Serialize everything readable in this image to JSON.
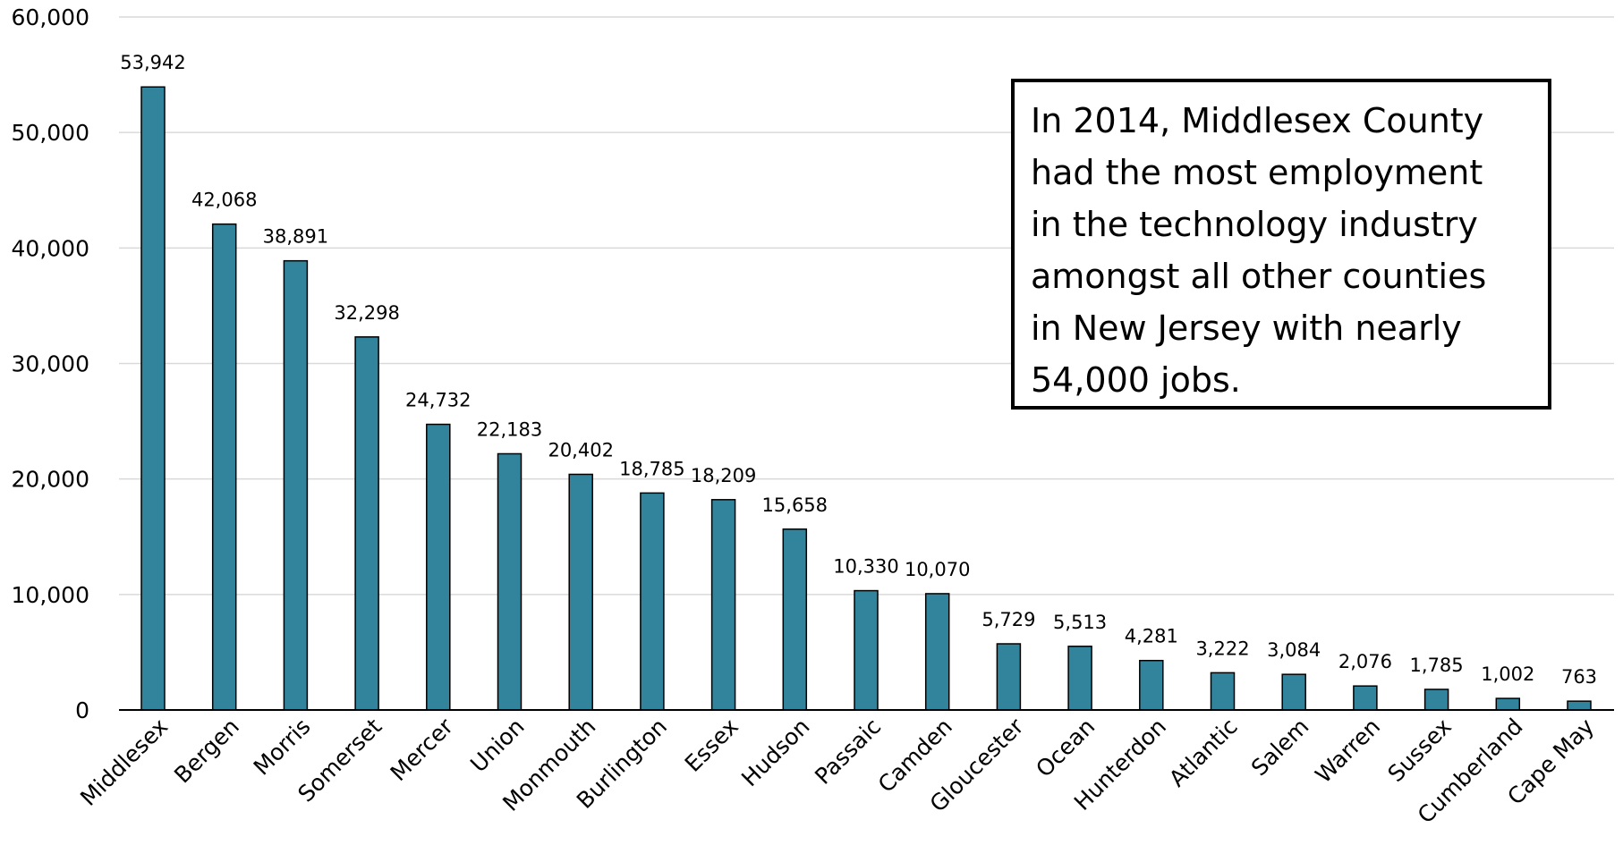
{
  "chart_data": {
    "type": "bar",
    "title": "",
    "xlabel": "",
    "ylabel": "",
    "ylim": [
      0,
      60000
    ],
    "yticks": [
      "0",
      "10,000",
      "20,000",
      "30,000",
      "40,000",
      "50,000",
      "60,000"
    ],
    "ytick_values": [
      0,
      10000,
      20000,
      30000,
      40000,
      50000,
      60000
    ],
    "grid": true,
    "bar_color": "#31849B",
    "categories": [
      "Middlesex",
      "Bergen",
      "Morris",
      "Somerset",
      "Mercer",
      "Union",
      "Monmouth",
      "Burlington",
      "Essex",
      "Hudson",
      "Passaic",
      "Camden",
      "Gloucester",
      "Ocean",
      "Hunterdon",
      "Atlantic",
      "Salem",
      "Warren",
      "Sussex",
      "Cumberland",
      "Cape May"
    ],
    "values": [
      53942,
      42068,
      38891,
      32298,
      24732,
      22183,
      20402,
      18785,
      18209,
      15658,
      10330,
      10070,
      5729,
      5513,
      4281,
      3222,
      3084,
      2076,
      1785,
      1002,
      763
    ],
    "data_labels": [
      "53,942",
      "42,068",
      "38,891",
      "32,298",
      "24,732",
      "22,183",
      "20,402",
      "18,785",
      "18,209",
      "15,658",
      "10,330",
      "10,070",
      "5,729",
      "5,513",
      "4,281",
      "3,222",
      "3,084",
      "2,076",
      "1,785",
      "1,002",
      "763"
    ]
  },
  "annotation": {
    "text": "In 2014, Middlesex County\nhad the most employment\nin the technology industry\namongst all other counties\nin New Jersey with nearly\n54,000 jobs."
  }
}
